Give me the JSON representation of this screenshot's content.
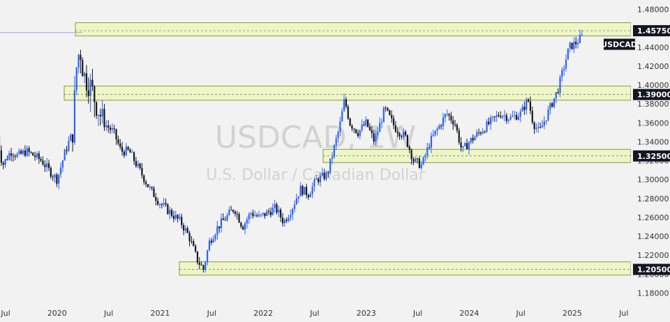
{
  "chart_data": {
    "type": "candlestick",
    "symbol": "USDCAD",
    "watermark": {
      "symbol": "USDCAD, 1W",
      "description": "U.S. Dollar / Canadian Dollar"
    },
    "x_ticks": [
      "Jul",
      "2020",
      "Jul",
      "2021",
      "Jul",
      "2022",
      "Jul",
      "2023",
      "Jul",
      "2024",
      "Jul",
      "2025",
      "Jul"
    ],
    "ylim": [
      1.17,
      1.49
    ],
    "y_ticks": [
      "1.18000",
      "1.20000",
      "1.22000",
      "1.24000",
      "1.26000",
      "1.28000",
      "1.30000",
      "1.32000",
      "1.34000",
      "1.36000",
      "1.38000",
      "1.40000",
      "1.42000",
      "1.44000",
      "1.46000",
      "1.48000"
    ],
    "levels": [
      {
        "value": 1.4575,
        "label": "1.45750",
        "band": [
          1.452,
          1.466
        ]
      },
      {
        "value": 1.39,
        "label": "1.39000",
        "band": [
          1.384,
          1.399
        ]
      },
      {
        "value": 1.325,
        "label": "1.32500",
        "band": [
          1.318,
          1.332
        ]
      },
      {
        "value": 1.205,
        "label": "1.20500",
        "band": [
          1.199,
          1.213
        ]
      }
    ],
    "last_price_label": "USDCAD",
    "last_price": 1.452,
    "colors": {
      "up": "#2962ff",
      "down": "#131722",
      "band_fill": "#eef5c6",
      "band_stroke": "#8c9a3a",
      "label_bg": "#131722"
    },
    "path": [
      [
        2019.42,
        1.345
      ],
      [
        2019.47,
        1.315
      ],
      [
        2019.55,
        1.33
      ],
      [
        2019.62,
        1.325
      ],
      [
        2019.7,
        1.33
      ],
      [
        2019.78,
        1.325
      ],
      [
        2019.85,
        1.32
      ],
      [
        2019.92,
        1.31
      ],
      [
        2020.0,
        1.3
      ],
      [
        2020.08,
        1.33
      ],
      [
        2020.15,
        1.35
      ],
      [
        2020.19,
        1.42
      ],
      [
        2020.22,
        1.44
      ],
      [
        2020.26,
        1.41
      ],
      [
        2020.32,
        1.4
      ],
      [
        2020.38,
        1.38
      ],
      [
        2020.45,
        1.36
      ],
      [
        2020.55,
        1.35
      ],
      [
        2020.62,
        1.33
      ],
      [
        2020.7,
        1.33
      ],
      [
        2020.8,
        1.31
      ],
      [
        2020.9,
        1.29
      ],
      [
        2021.0,
        1.275
      ],
      [
        2021.1,
        1.265
      ],
      [
        2021.2,
        1.255
      ],
      [
        2021.28,
        1.24
      ],
      [
        2021.36,
        1.215
      ],
      [
        2021.42,
        1.205
      ],
      [
        2021.48,
        1.235
      ],
      [
        2021.56,
        1.25
      ],
      [
        2021.64,
        1.26
      ],
      [
        2021.72,
        1.27
      ],
      [
        2021.8,
        1.25
      ],
      [
        2021.88,
        1.265
      ],
      [
        2021.96,
        1.26
      ],
      [
        2022.04,
        1.265
      ],
      [
        2022.12,
        1.27
      ],
      [
        2022.2,
        1.255
      ],
      [
        2022.28,
        1.27
      ],
      [
        2022.36,
        1.29
      ],
      [
        2022.44,
        1.285
      ],
      [
        2022.52,
        1.3
      ],
      [
        2022.62,
        1.305
      ],
      [
        2022.68,
        1.33
      ],
      [
        2022.74,
        1.355
      ],
      [
        2022.79,
        1.385
      ],
      [
        2022.84,
        1.36
      ],
      [
        2022.92,
        1.35
      ],
      [
        2023.0,
        1.36
      ],
      [
        2023.08,
        1.34
      ],
      [
        2023.18,
        1.375
      ],
      [
        2023.28,
        1.355
      ],
      [
        2023.38,
        1.345
      ],
      [
        2023.46,
        1.32
      ],
      [
        2023.54,
        1.315
      ],
      [
        2023.62,
        1.34
      ],
      [
        2023.7,
        1.355
      ],
      [
        2023.78,
        1.37
      ],
      [
        2023.86,
        1.36
      ],
      [
        2023.93,
        1.33
      ],
      [
        2024.0,
        1.34
      ],
      [
        2024.1,
        1.35
      ],
      [
        2024.2,
        1.36
      ],
      [
        2024.3,
        1.37
      ],
      [
        2024.4,
        1.365
      ],
      [
        2024.5,
        1.37
      ],
      [
        2024.57,
        1.385
      ],
      [
        2024.62,
        1.36
      ],
      [
        2024.68,
        1.35
      ],
      [
        2024.74,
        1.365
      ],
      [
        2024.8,
        1.38
      ],
      [
        2024.86,
        1.395
      ],
      [
        2024.92,
        1.42
      ],
      [
        2024.97,
        1.44
      ],
      [
        2025.04,
        1.445
      ],
      [
        2025.1,
        1.452
      ]
    ]
  }
}
